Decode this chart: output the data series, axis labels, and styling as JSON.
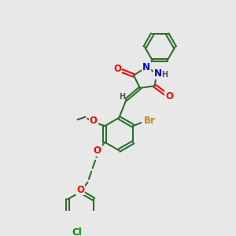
{
  "bg_color": "#e8e8e8",
  "bond_color": "#2d6e2d",
  "bond_width": 1.5,
  "atom_colors": {
    "O": "#ff0000",
    "N": "#0000cc",
    "Br": "#cc8800",
    "Cl": "#008800",
    "H": "#555555",
    "C": "#2d6e2d"
  },
  "font_size": 8.5,
  "fig_size": [
    3.0,
    3.0
  ],
  "dpi": 100
}
